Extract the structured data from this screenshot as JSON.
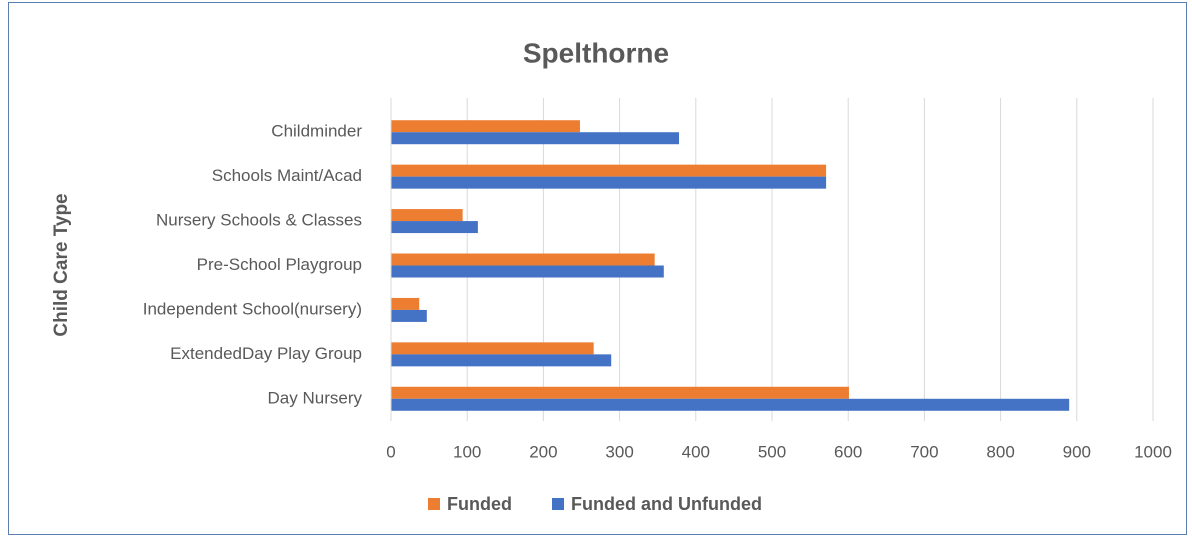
{
  "chart_data": {
    "type": "barh",
    "title": "Spelthorne",
    "y_label": "Child Care Type",
    "categories": [
      "Childminder",
      "Schools Maint/Acad",
      "Nursery Schools & Classes",
      "Pre-School Playgroup",
      "Independent School(nursery)",
      "ExtendedDay Play Group",
      "Day Nursery"
    ],
    "series": [
      {
        "name": "Funded",
        "color": "#ed7d31",
        "values": [
          248,
          571,
          94,
          346,
          37,
          266,
          601
        ]
      },
      {
        "name": "Funded and Unfunded",
        "color": "#4472c4",
        "values": [
          378,
          571,
          114,
          358,
          47,
          289,
          890
        ]
      }
    ],
    "xlim": [
      0,
      1000
    ],
    "xticks": [
      0,
      100,
      200,
      300,
      400,
      500,
      600,
      700,
      800,
      900,
      1000
    ],
    "grid": true,
    "legend": "bottom"
  }
}
